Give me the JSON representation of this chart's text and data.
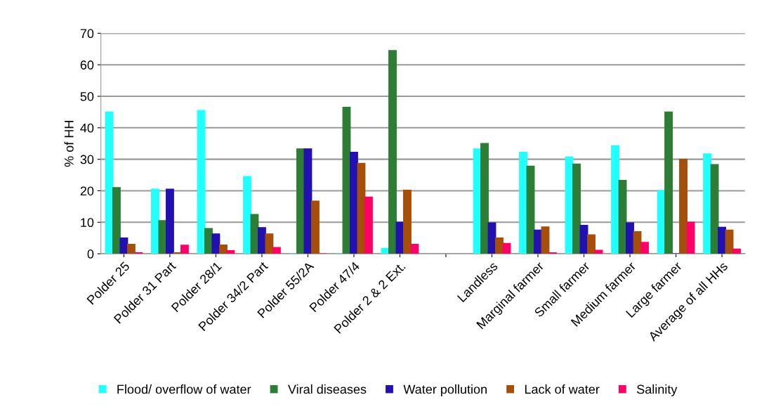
{
  "chart_data": {
    "type": "bar",
    "ylabel": "% of HH",
    "categories": [
      "Polder 25",
      "Polder 31 Part",
      "Polder 28/1",
      "Polder 34/2 Part",
      "Polder 55/2A",
      "Polder 47/4",
      "Polder 2 & 2 Ext.",
      null,
      "Landless",
      "Marginal farmer",
      "Small farmer",
      "Medium farmer",
      "Large farmer",
      "Average of all HHs"
    ],
    "series": [
      {
        "name": "Flood/ overflow of water",
        "color": "#22ffff",
        "values": [
          45,
          20.5,
          45.5,
          24.5,
          0,
          0,
          1.7,
          null,
          33.3,
          32.2,
          30.7,
          34.3,
          20,
          31.7
        ]
      },
      {
        "name": "Viral diseases",
        "color": "#2e7d36",
        "values": [
          21,
          10.5,
          8,
          12.5,
          33.3,
          46.5,
          64.5,
          null,
          35,
          27.8,
          28.5,
          23.3,
          45,
          28.3
        ]
      },
      {
        "name": "Water pollution",
        "color": "#2310b0",
        "values": [
          5,
          20.5,
          6.3,
          8.3,
          33.3,
          32.2,
          10,
          null,
          9.8,
          7.5,
          9,
          9.8,
          0,
          8.4
        ]
      },
      {
        "name": "Lack of water",
        "color": "#a64f0a",
        "values": [
          3,
          0.3,
          2.8,
          6.3,
          16.7,
          28.7,
          20.2,
          null,
          5,
          8.5,
          6,
          7,
          30,
          7.5
        ]
      },
      {
        "name": "Salinity",
        "color": "#ff0066",
        "values": [
          0.3,
          2.7,
          1,
          2,
          0,
          18,
          3,
          null,
          3.3,
          0.3,
          1.1,
          3.6,
          10,
          1.5
        ]
      }
    ],
    "ylim": [
      0,
      70
    ],
    "yticks": [
      0,
      10,
      20,
      30,
      40,
      50,
      60,
      70
    ],
    "grid": "y",
    "legend": "bottom"
  }
}
